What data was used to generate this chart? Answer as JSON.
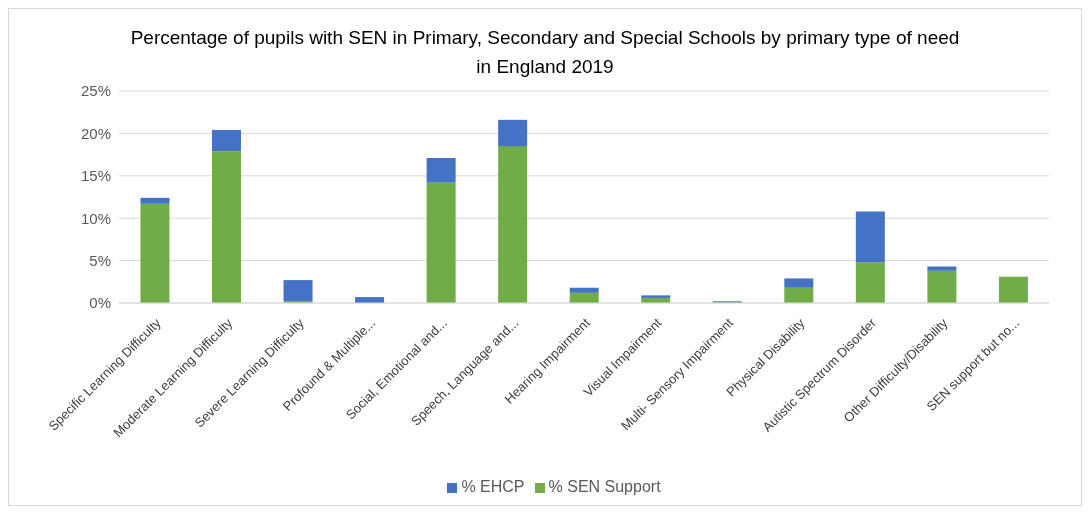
{
  "chart_data": {
    "type": "bar",
    "title": "Percentage of pupils with SEN in Primary, Secondary and Special Schools by primary type of need in England 2019",
    "categories": [
      "Specific Learning Difficulty",
      "Moderate Learning Difficulty",
      "Severe Learning Difficulty",
      "Profound & Multiple...",
      "Social, Emotional and...",
      "Speech, Language and...",
      "Hearing Impairment",
      "Visual Impairment",
      "Multi- Sensory Impairment",
      "Physical Disability",
      "Autistic Spectrum Disorder",
      "Other Difficulty/Disability",
      "SEN support but no..."
    ],
    "series": [
      {
        "name": "% SEN Support",
        "color": "#70ad47",
        "values": [
          11.7,
          17.9,
          0.2,
          null,
          14.2,
          18.5,
          1.2,
          0.6,
          0.1,
          1.8,
          4.8,
          3.8,
          3.1
        ]
      },
      {
        "name": "% EHCP",
        "color": "#4472c4",
        "values": [
          0.7,
          2.5,
          2.5,
          0.7,
          2.9,
          3.1,
          0.6,
          0.3,
          0.1,
          1.1,
          6.0,
          0.5,
          0
        ]
      }
    ],
    "stacked": true,
    "ylim": [
      0,
      25
    ],
    "yticks": [
      {
        "value": 0,
        "label": "0%"
      },
      {
        "value": 5,
        "label": "5%"
      },
      {
        "value": 10,
        "label": "10%"
      },
      {
        "value": 15,
        "label": "15%"
      },
      {
        "value": 20,
        "label": "20%"
      },
      {
        "value": 25,
        "label": "25%"
      }
    ],
    "grid": "y",
    "legend": "bottom"
  }
}
